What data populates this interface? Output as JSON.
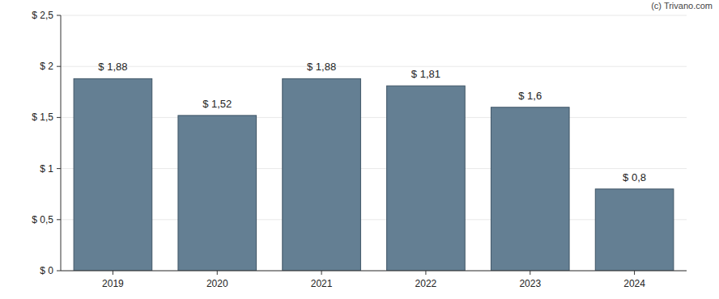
{
  "chart_data": {
    "type": "bar",
    "credit": "(c) Trivano.com",
    "categories": [
      "2019",
      "2020",
      "2021",
      "2022",
      "2023",
      "2024"
    ],
    "values": [
      1.88,
      1.52,
      1.88,
      1.81,
      1.6,
      0.8
    ],
    "value_labels": [
      "$ 1,88",
      "$ 1,52",
      "$ 1,88",
      "$ 1,81",
      "$ 1,6",
      "$ 0,8"
    ],
    "color": "#647f93",
    "ylim": [
      0,
      2.5
    ],
    "yticks": [
      {
        "value": 0,
        "label": "$ 0"
      },
      {
        "value": 0.5,
        "label": "$ 0,5"
      },
      {
        "value": 1,
        "label": "$ 1"
      },
      {
        "value": 1.5,
        "label": "$ 1,5"
      },
      {
        "value": 2,
        "label": "$ 2"
      },
      {
        "value": 2.5,
        "label": "$ 2,5"
      }
    ],
    "grid": true,
    "data_labels": true
  }
}
